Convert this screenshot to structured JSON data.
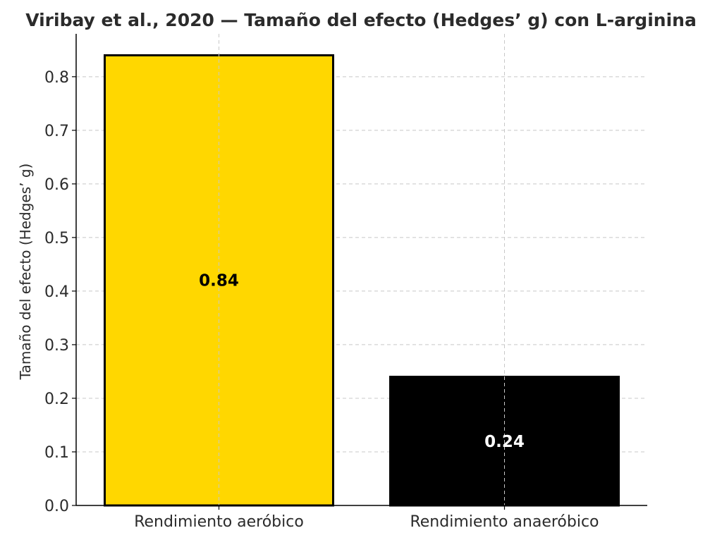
{
  "chart_data": {
    "type": "bar",
    "title": "Viribay et al., 2020 — Tamaño del efecto (Hedges’ g) con L-arginina",
    "xlabel": "",
    "ylabel": "Tamaño del efecto (Hedges’ g)",
    "categories": [
      "Rendimiento aeróbico",
      "Rendimiento anaeróbico"
    ],
    "values": [
      0.84,
      0.24
    ],
    "value_labels": [
      "0.84",
      "0.24"
    ],
    "bar_colors": [
      "#FFD700",
      "#000000"
    ],
    "value_label_colors": [
      "#000000",
      "#ffffff"
    ],
    "edge_color": "#000000",
    "ylim": [
      0.0,
      0.88
    ],
    "yticks": [
      0.0,
      0.1,
      0.2,
      0.3,
      0.4,
      0.5,
      0.6,
      0.7,
      0.8
    ],
    "ytick_labels": [
      "0.0",
      "0.1",
      "0.2",
      "0.3",
      "0.4",
      "0.5",
      "0.6",
      "0.7",
      "0.8"
    ],
    "grid": true,
    "legend": "none"
  }
}
